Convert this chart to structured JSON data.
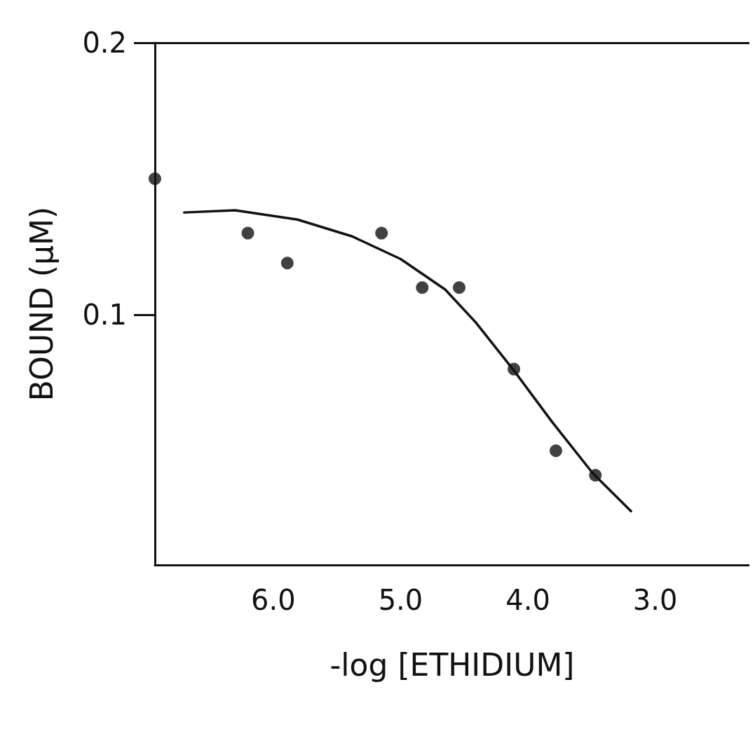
{
  "chart_data": {
    "type": "scatter",
    "xlabel": "-log [ETHIDIUM]",
    "ylabel": "BOUND (μM)",
    "xlim": [
      6.93,
      2.26
    ],
    "ylim": [
      0.008,
      0.2
    ],
    "xticks": [
      {
        "value": 6,
        "label": "6.0"
      },
      {
        "value": 5,
        "label": "5.0"
      },
      {
        "value": 4,
        "label": "4.0"
      },
      {
        "value": 3,
        "label": "3.0"
      }
    ],
    "yticks": [
      0.1,
      0.2
    ],
    "grid": false,
    "marker": "circle",
    "series": [
      {
        "color": "#111111",
        "x": [
          6.93,
          6.2,
          5.89,
          5.15,
          4.83,
          4.54,
          4.11,
          3.78,
          3.47
        ],
        "values": [
          0.15,
          0.13,
          0.119,
          0.13,
          0.11,
          0.11,
          0.08,
          0.05,
          0.041
        ]
      },
      {
        "type": "line",
        "color": "#111111",
        "marker": "none",
        "line_style": "solid",
        "x": [
          6.7,
          6.3,
          5.81,
          5.38,
          5.0,
          4.65,
          4.41,
          4.11,
          3.81,
          3.49,
          3.19
        ],
        "values": [
          0.1376,
          0.1384,
          0.135,
          0.1288,
          0.1205,
          0.1093,
          0.0972,
          0.0795,
          0.0606,
          0.0417,
          0.0278
        ]
      }
    ]
  }
}
